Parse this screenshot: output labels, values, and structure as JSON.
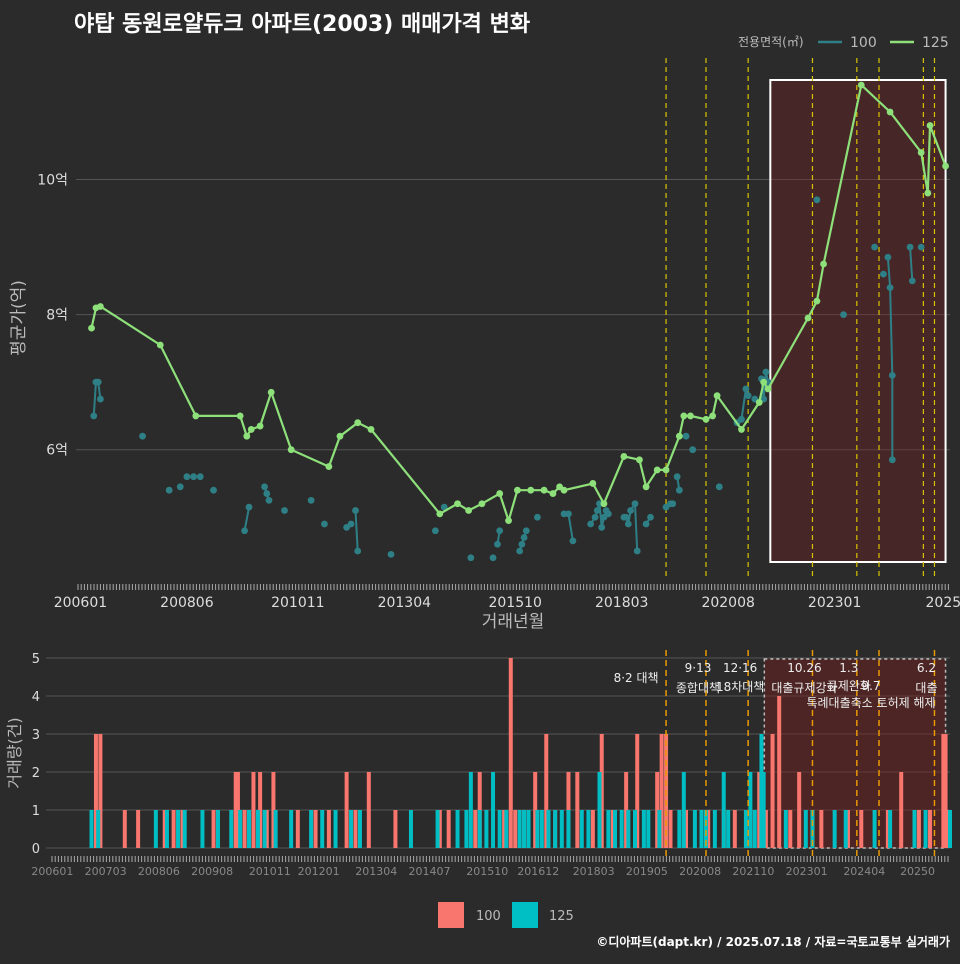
{
  "title": "야탑 동원로얄듀크 아파트(2003) 매매가격 변화",
  "credit": "©디아파트(dapt.kr) / 2025.07.18 / 자료=국토교통부 실거래가",
  "colors": {
    "s100": "#2e7f86",
    "s125": "#8ee07a",
    "bar100": "#f8766d",
    "bar125": "#00bfc4",
    "policy": "#d8c400",
    "policy2": "#e89a00"
  },
  "chart_data": [
    {
      "type": "line",
      "xlabel": "거래년월",
      "ylabel": "평균가(억)",
      "ylim": [
        4.1,
        11.8
      ],
      "y_ticks": [
        "6억",
        "8억",
        "10억"
      ],
      "y_tick_values": [
        6,
        8,
        10
      ],
      "x_ticks": [
        "200601",
        "200806",
        "201011",
        "201304",
        "201510",
        "201803",
        "202008",
        "202301",
        "2025"
      ],
      "legend_title": "전용면적(㎡)",
      "legend_position": "top-right",
      "series": [
        {
          "name": "100",
          "points": [
            [
              2006.3,
              6.5
            ],
            [
              2006.35,
              7.0
            ],
            [
              2006.4,
              7.0
            ],
            [
              2006.45,
              6.75
            ],
            [
              2007.4,
              6.2
            ],
            [
              2008.0,
              5.4
            ],
            [
              2008.25,
              5.45
            ],
            [
              2008.4,
              5.6
            ],
            [
              2008.55,
              5.6
            ],
            [
              2008.7,
              5.6
            ],
            [
              2009.0,
              5.4
            ],
            [
              2009.7,
              4.8
            ],
            [
              2009.8,
              5.15
            ],
            [
              2010.15,
              5.45
            ],
            [
              2010.2,
              5.35
            ],
            [
              2010.25,
              5.25
            ],
            [
              2010.6,
              5.1
            ],
            [
              2011.2,
              5.25
            ],
            [
              2011.5,
              4.9
            ],
            [
              2012.0,
              4.85
            ],
            [
              2012.1,
              4.9
            ],
            [
              2012.2,
              5.1
            ],
            [
              2012.25,
              4.5
            ],
            [
              2013.0,
              4.45
            ],
            [
              2014.0,
              4.8
            ],
            [
              2014.2,
              5.15
            ],
            [
              2014.8,
              4.4
            ],
            [
              2015.3,
              4.4
            ],
            [
              2015.4,
              4.6
            ],
            [
              2015.45,
              4.8
            ],
            [
              2015.9,
              4.5
            ],
            [
              2015.95,
              4.6
            ],
            [
              2016.0,
              4.7
            ],
            [
              2016.05,
              4.8
            ],
            [
              2016.3,
              5.0
            ],
            [
              2016.9,
              5.05
            ],
            [
              2017.0,
              5.05
            ],
            [
              2017.1,
              4.65
            ],
            [
              2017.5,
              4.9
            ],
            [
              2017.6,
              5.0
            ],
            [
              2017.65,
              5.1
            ],
            [
              2017.7,
              5.2
            ],
            [
              2017.75,
              4.85
            ],
            [
              2017.8,
              5.0
            ],
            [
              2017.85,
              5.1
            ],
            [
              2017.9,
              5.05
            ],
            [
              2018.25,
              5.0
            ],
            [
              2018.3,
              5.0
            ],
            [
              2018.35,
              4.9
            ],
            [
              2018.4,
              5.1
            ],
            [
              2018.5,
              5.2
            ],
            [
              2018.55,
              4.5
            ],
            [
              2018.75,
              4.9
            ],
            [
              2018.85,
              5.0
            ],
            [
              2019.2,
              5.15
            ],
            [
              2019.3,
              5.2
            ],
            [
              2019.35,
              5.2
            ],
            [
              2019.45,
              5.6
            ],
            [
              2019.5,
              5.4
            ],
            [
              2019.65,
              6.2
            ],
            [
              2019.8,
              6.0
            ],
            [
              2020.4,
              5.45
            ],
            [
              2020.8,
              6.4
            ],
            [
              2020.9,
              6.45
            ],
            [
              2021.0,
              6.9
            ],
            [
              2021.05,
              6.8
            ],
            [
              2021.2,
              6.75
            ],
            [
              2021.35,
              7.05
            ],
            [
              2021.4,
              6.75
            ],
            [
              2021.45,
              7.15
            ],
            [
              2021.5,
              7.0
            ],
            [
              2022.6,
              9.7
            ],
            [
              2023.2,
              8.0
            ],
            [
              2023.9,
              9.0
            ],
            [
              2024.1,
              8.6
            ],
            [
              2024.2,
              8.85
            ],
            [
              2024.25,
              8.4
            ],
            [
              2024.3,
              7.1
            ],
            [
              2024.3,
              5.85
            ],
            [
              2024.7,
              9.0
            ],
            [
              2024.75,
              8.5
            ],
            [
              2024.95,
              9.0
            ]
          ]
        },
        {
          "name": "125",
          "points": [
            [
              2006.25,
              7.8
            ],
            [
              2006.35,
              8.1
            ],
            [
              2006.45,
              8.12
            ],
            [
              2007.8,
              7.55
            ],
            [
              2008.6,
              6.5
            ],
            [
              2009.6,
              6.5
            ],
            [
              2009.75,
              6.2
            ],
            [
              2009.85,
              6.3
            ],
            [
              2010.05,
              6.35
            ],
            [
              2010.3,
              6.85
            ],
            [
              2010.75,
              6.0
            ],
            [
              2011.6,
              5.75
            ],
            [
              2011.85,
              6.2
            ],
            [
              2012.25,
              6.4
            ],
            [
              2012.55,
              6.3
            ],
            [
              2014.1,
              5.05
            ],
            [
              2014.5,
              5.2
            ],
            [
              2014.75,
              5.1
            ],
            [
              2015.05,
              5.2
            ],
            [
              2015.45,
              5.35
            ],
            [
              2015.65,
              4.95
            ],
            [
              2015.85,
              5.4
            ],
            [
              2016.15,
              5.4
            ],
            [
              2016.45,
              5.4
            ],
            [
              2016.65,
              5.35
            ],
            [
              2016.8,
              5.45
            ],
            [
              2016.9,
              5.4
            ],
            [
              2017.55,
              5.5
            ],
            [
              2017.8,
              5.2
            ],
            [
              2018.25,
              5.9
            ],
            [
              2018.6,
              5.85
            ],
            [
              2018.75,
              5.45
            ],
            [
              2019.0,
              5.7
            ],
            [
              2019.2,
              5.7
            ],
            [
              2019.5,
              6.2
            ],
            [
              2019.6,
              6.5
            ],
            [
              2019.75,
              6.5
            ],
            [
              2020.1,
              6.45
            ],
            [
              2020.25,
              6.5
            ],
            [
              2020.35,
              6.8
            ],
            [
              2020.9,
              6.3
            ],
            [
              2021.3,
              6.7
            ],
            [
              2021.4,
              7.0
            ],
            [
              2021.5,
              6.9
            ],
            [
              2022.4,
              7.95
            ],
            [
              2022.6,
              8.2
            ],
            [
              2022.75,
              8.75
            ],
            [
              2023.6,
              11.4
            ],
            [
              2024.25,
              11.0
            ],
            [
              2024.95,
              10.4
            ],
            [
              2025.1,
              9.8
            ],
            [
              2025.15,
              10.8
            ],
            [
              2025.5,
              10.2
            ]
          ]
        }
      ],
      "policy_dates": [
        2019.2,
        2020.1,
        2021.05,
        2022.5,
        2023.5,
        2024.0,
        2025.0,
        2025.25
      ],
      "highlight_range": [
        2021.55,
        2025.5
      ],
      "x_range": [
        2005.9,
        2025.6
      ]
    },
    {
      "type": "bar",
      "ylabel": "거래량(건)",
      "ylim": [
        0,
        5
      ],
      "y_ticks": [
        "0",
        "1",
        "2",
        "3",
        "4",
        "5"
      ],
      "x_ticks": [
        "200601",
        "200703",
        "200806",
        "200908",
        "201011",
        "201201",
        "201304",
        "201407",
        "201510",
        "201612",
        "201803",
        "201905",
        "202008",
        "202110",
        "202301",
        "202404",
        "20250"
      ],
      "legend_position": "bottom",
      "series": [
        {
          "name": "100",
          "color": "#f8766d"
        },
        {
          "name": "125",
          "color": "#00bfc4"
        }
      ],
      "bars_100": [
        [
          2006.35,
          3
        ],
        [
          2006.45,
          3
        ],
        [
          2007.0,
          1
        ],
        [
          2007.3,
          1
        ],
        [
          2007.9,
          1
        ],
        [
          2008.1,
          1
        ],
        [
          2008.3,
          1
        ],
        [
          2009.0,
          1
        ],
        [
          2009.5,
          2
        ],
        [
          2009.55,
          2
        ],
        [
          2009.7,
          1
        ],
        [
          2009.9,
          2
        ],
        [
          2010.05,
          2
        ],
        [
          2010.2,
          1
        ],
        [
          2010.35,
          2
        ],
        [
          2010.9,
          1
        ],
        [
          2011.3,
          1
        ],
        [
          2011.6,
          1
        ],
        [
          2012.0,
          2
        ],
        [
          2012.2,
          1
        ],
        [
          2012.5,
          2
        ],
        [
          2013.1,
          1
        ],
        [
          2014.1,
          1
        ],
        [
          2014.3,
          1
        ],
        [
          2014.9,
          1
        ],
        [
          2015.0,
          2
        ],
        [
          2015.55,
          1
        ],
        [
          2015.7,
          5
        ],
        [
          2015.8,
          1
        ],
        [
          2016.0,
          1
        ],
        [
          2016.25,
          2
        ],
        [
          2016.5,
          3
        ],
        [
          2016.7,
          1
        ],
        [
          2017.0,
          2
        ],
        [
          2017.2,
          2
        ],
        [
          2017.55,
          1
        ],
        [
          2017.75,
          3
        ],
        [
          2018.0,
          1
        ],
        [
          2018.3,
          2
        ],
        [
          2018.55,
          3
        ],
        [
          2019.0,
          2
        ],
        [
          2019.1,
          3
        ],
        [
          2019.2,
          3
        ],
        [
          2019.3,
          1
        ],
        [
          2019.65,
          1
        ],
        [
          2020.0,
          1
        ],
        [
          2020.15,
          1
        ],
        [
          2020.5,
          1
        ],
        [
          2020.75,
          1
        ],
        [
          2021.1,
          1
        ],
        [
          2021.3,
          2
        ],
        [
          2021.45,
          1
        ],
        [
          2021.6,
          3
        ],
        [
          2021.75,
          4
        ],
        [
          2022.0,
          1
        ],
        [
          2022.2,
          2
        ],
        [
          2022.7,
          1
        ],
        [
          2023.3,
          1
        ],
        [
          2023.6,
          1
        ],
        [
          2024.2,
          1
        ],
        [
          2024.5,
          2
        ],
        [
          2024.9,
          1
        ],
        [
          2025.15,
          1
        ],
        [
          2025.45,
          3
        ],
        [
          2025.5,
          3
        ],
        [
          2025.55,
          1
        ]
      ],
      "bars_125": [
        [
          2006.25,
          1
        ],
        [
          2006.4,
          1
        ],
        [
          2007.7,
          1
        ],
        [
          2007.95,
          1
        ],
        [
          2008.2,
          1
        ],
        [
          2008.35,
          1
        ],
        [
          2008.75,
          1
        ],
        [
          2009.1,
          1
        ],
        [
          2009.4,
          1
        ],
        [
          2009.6,
          1
        ],
        [
          2009.8,
          1
        ],
        [
          2010.0,
          1
        ],
        [
          2010.15,
          1
        ],
        [
          2010.4,
          1
        ],
        [
          2010.75,
          1
        ],
        [
          2011.2,
          1
        ],
        [
          2011.45,
          1
        ],
        [
          2011.75,
          1
        ],
        [
          2012.1,
          1
        ],
        [
          2012.3,
          1
        ],
        [
          2013.45,
          1
        ],
        [
          2014.05,
          1
        ],
        [
          2014.5,
          1
        ],
        [
          2014.7,
          1
        ],
        [
          2014.8,
          2
        ],
        [
          2015.0,
          1
        ],
        [
          2015.15,
          1
        ],
        [
          2015.3,
          2
        ],
        [
          2015.45,
          1
        ],
        [
          2015.6,
          1
        ],
        [
          2015.9,
          1
        ],
        [
          2016.0,
          1
        ],
        [
          2016.1,
          1
        ],
        [
          2016.3,
          1
        ],
        [
          2016.4,
          1
        ],
        [
          2016.55,
          1
        ],
        [
          2016.7,
          1
        ],
        [
          2016.85,
          1
        ],
        [
          2017.0,
          1
        ],
        [
          2017.3,
          1
        ],
        [
          2017.45,
          1
        ],
        [
          2017.7,
          2
        ],
        [
          2017.9,
          1
        ],
        [
          2018.05,
          1
        ],
        [
          2018.2,
          1
        ],
        [
          2018.35,
          1
        ],
        [
          2018.5,
          1
        ],
        [
          2018.7,
          1
        ],
        [
          2018.8,
          1
        ],
        [
          2019.05,
          1
        ],
        [
          2019.5,
          1
        ],
        [
          2019.6,
          2
        ],
        [
          2019.85,
          1
        ],
        [
          2020.0,
          1
        ],
        [
          2020.1,
          1
        ],
        [
          2020.3,
          1
        ],
        [
          2020.5,
          2
        ],
        [
          2020.6,
          1
        ],
        [
          2021.0,
          1
        ],
        [
          2021.1,
          2
        ],
        [
          2021.2,
          1
        ],
        [
          2021.35,
          3
        ],
        [
          2021.4,
          2
        ],
        [
          2021.9,
          1
        ],
        [
          2022.35,
          1
        ],
        [
          2022.5,
          1
        ],
        [
          2023.0,
          1
        ],
        [
          2023.25,
          1
        ],
        [
          2023.9,
          1
        ],
        [
          2024.25,
          1
        ],
        [
          2024.8,
          1
        ],
        [
          2025.05,
          1
        ],
        [
          2025.6,
          1
        ]
      ],
      "policy_labels": [
        {
          "date": 2019.2,
          "text": [
            "8·2 대책"
          ]
        },
        {
          "date": 2020.1,
          "text": [
            "9·13",
            "종합대책"
          ]
        },
        {
          "date": 2021.05,
          "text": [
            "12·16",
            "18차대책"
          ]
        },
        {
          "date": 2022.5,
          "text": [
            "10.26",
            "대출규제강화"
          ]
        },
        {
          "date": 2023.5,
          "text": [
            "1.3",
            "규제완화"
          ]
        },
        {
          "date": 2024.0,
          "text": [
            "9.7",
            "특례대출축소 토허제 해제"
          ]
        },
        {
          "date": 2025.25,
          "text": [
            "6.2",
            "대출"
          ]
        }
      ]
    }
  ]
}
